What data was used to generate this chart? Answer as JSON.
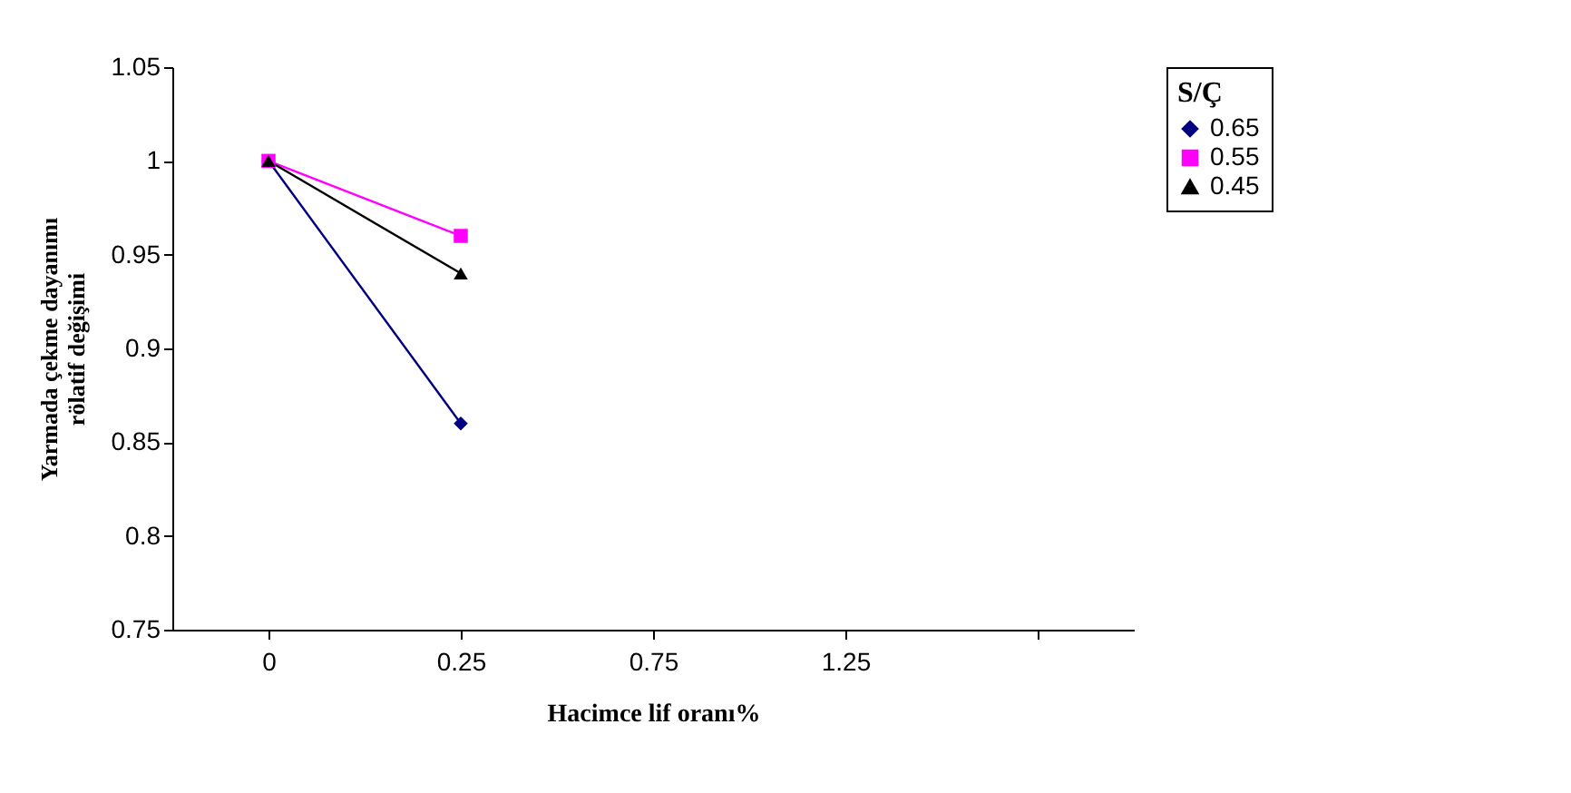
{
  "chart_data": {
    "type": "line",
    "xlabel": "Hacimce lif oranı%",
    "ylabel": "Yarmada çekme dayanımı\nrölatif değişimi",
    "legend_title": "S/Ç",
    "legend": "right",
    "grid": false,
    "categories": [
      "0",
      "0.25",
      "0.75",
      "1.25",
      null
    ],
    "ylim": [
      0.75,
      1.05
    ],
    "yticks": [
      0.75,
      0.8,
      0.85,
      0.9,
      0.95,
      1,
      1.05
    ],
    "series": [
      {
        "name": "0.65",
        "color": "#000080",
        "marker": "diamond",
        "values": [
          1,
          0.86,
          null,
          null,
          null
        ]
      },
      {
        "name": "0.55",
        "color": "#ff00ff",
        "marker": "square",
        "values": [
          1,
          0.96,
          null,
          null,
          null
        ]
      },
      {
        "name": "0.45",
        "color": "#000000",
        "marker": "triangle",
        "values": [
          1,
          0.94,
          null,
          null,
          null
        ]
      }
    ]
  }
}
